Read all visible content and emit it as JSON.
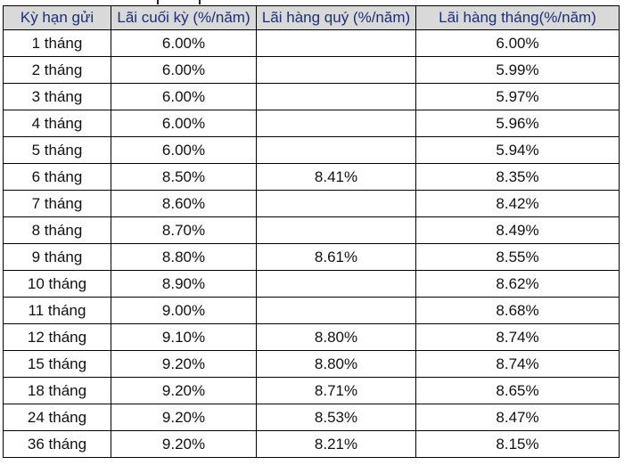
{
  "table": {
    "headers": [
      "Kỳ hạn gửi",
      "Lãi cuối kỳ (%/năm)",
      "Lãi hàng quý (%/năm)",
      "Lãi hàng tháng(%/năm)"
    ],
    "rows": [
      {
        "term": "1 tháng",
        "end": "6.00%",
        "quarterly": "",
        "monthly": "6.00%"
      },
      {
        "term": "2 tháng",
        "end": "6.00%",
        "quarterly": "",
        "monthly": "5.99%"
      },
      {
        "term": "3 tháng",
        "end": "6.00%",
        "quarterly": "",
        "monthly": "5.97%"
      },
      {
        "term": "4 tháng",
        "end": "6.00%",
        "quarterly": "",
        "monthly": "5.96%"
      },
      {
        "term": "5 tháng",
        "end": "6.00%",
        "quarterly": "",
        "monthly": "5.94%"
      },
      {
        "term": "6 tháng",
        "end": "8.50%",
        "quarterly": "8.41%",
        "monthly": "8.35%"
      },
      {
        "term": "7 tháng",
        "end": "8.60%",
        "quarterly": "",
        "monthly": "8.42%"
      },
      {
        "term": "8 tháng",
        "end": "8.70%",
        "quarterly": "",
        "monthly": "8.49%"
      },
      {
        "term": "9 tháng",
        "end": "8.80%",
        "quarterly": "8.61%",
        "monthly": "8.55%"
      },
      {
        "term": "10 tháng",
        "end": "8.90%",
        "quarterly": "",
        "monthly": "8.62%"
      },
      {
        "term": "11 tháng",
        "end": "9.00%",
        "quarterly": "",
        "monthly": "8.68%"
      },
      {
        "term": "12 tháng",
        "end": "9.10%",
        "quarterly": "8.80%",
        "monthly": "8.74%"
      },
      {
        "term": "15 tháng",
        "end": "9.20%",
        "quarterly": "8.80%",
        "monthly": "8.74%"
      },
      {
        "term": "18 tháng",
        "end": "9.20%",
        "quarterly": "8.71%",
        "monthly": "8.65%"
      },
      {
        "term": "24 tháng",
        "end": "9.20%",
        "quarterly": "8.53%",
        "monthly": "8.47%"
      },
      {
        "term": "36 tháng",
        "end": "9.20%",
        "quarterly": "8.21%",
        "monthly": "8.15%"
      }
    ]
  }
}
